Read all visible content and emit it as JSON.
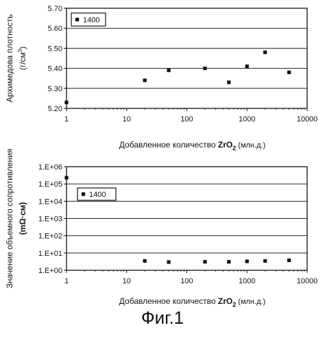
{
  "caption": "Фиг.1",
  "chart_data": [
    {
      "type": "scatter",
      "x_scale": "log",
      "xlim": [
        1,
        10000
      ],
      "ylim": [
        5.2,
        5.7
      ],
      "x_ticks": [
        "1",
        "10",
        "100",
        "1000",
        "10000"
      ],
      "y_ticks": [
        "5.20",
        "5.30",
        "5.40",
        "5.50",
        "5.60",
        "5.70"
      ],
      "xlabel": {
        "prefix": "Добавленное количество",
        "formula_main": "ZrO",
        "formula_sub": "2",
        "unit": "(млн.д.)"
      },
      "ylabel": {
        "line1": "Архимедова плотность",
        "line2_main": "(г/см",
        "line2_sup": "3",
        "line2_end": ")"
      },
      "legend_label": "1400",
      "grid": "horizontal",
      "series": [
        {
          "name": "1400",
          "x": [
            1,
            20,
            50,
            200,
            500,
            1000,
            2000,
            5000
          ],
          "y": [
            5.23,
            5.34,
            5.39,
            5.4,
            5.33,
            5.41,
            5.48,
            5.38
          ]
        }
      ]
    },
    {
      "type": "scatter",
      "x_scale": "log",
      "y_scale": "log",
      "xlim": [
        1,
        10000
      ],
      "ylim": [
        1,
        1000000
      ],
      "x_ticks": [
        "1",
        "10",
        "100",
        "1000",
        "10000"
      ],
      "y_ticks": [
        "1.E+00",
        "1.E+01",
        "1.E+02",
        "1.E+03",
        "1.E+04",
        "1.E+05",
        "1.E+06"
      ],
      "xlabel": {
        "prefix": "Добавленное количество",
        "formula_main": "ZrO",
        "formula_sub": "2",
        "unit": "(млн.д.)"
      },
      "ylabel": {
        "line1": "Значение объемного сопротивления",
        "line2": "(mΩ·см)"
      },
      "legend_label": "1400",
      "grid": "horizontal",
      "series": [
        {
          "name": "1400",
          "x": [
            1,
            20,
            50,
            200,
            500,
            1000,
            2000,
            5000
          ],
          "y": [
            230000,
            3.5,
            3.0,
            3.1,
            3.1,
            3.3,
            3.5,
            3.8
          ]
        }
      ]
    }
  ]
}
